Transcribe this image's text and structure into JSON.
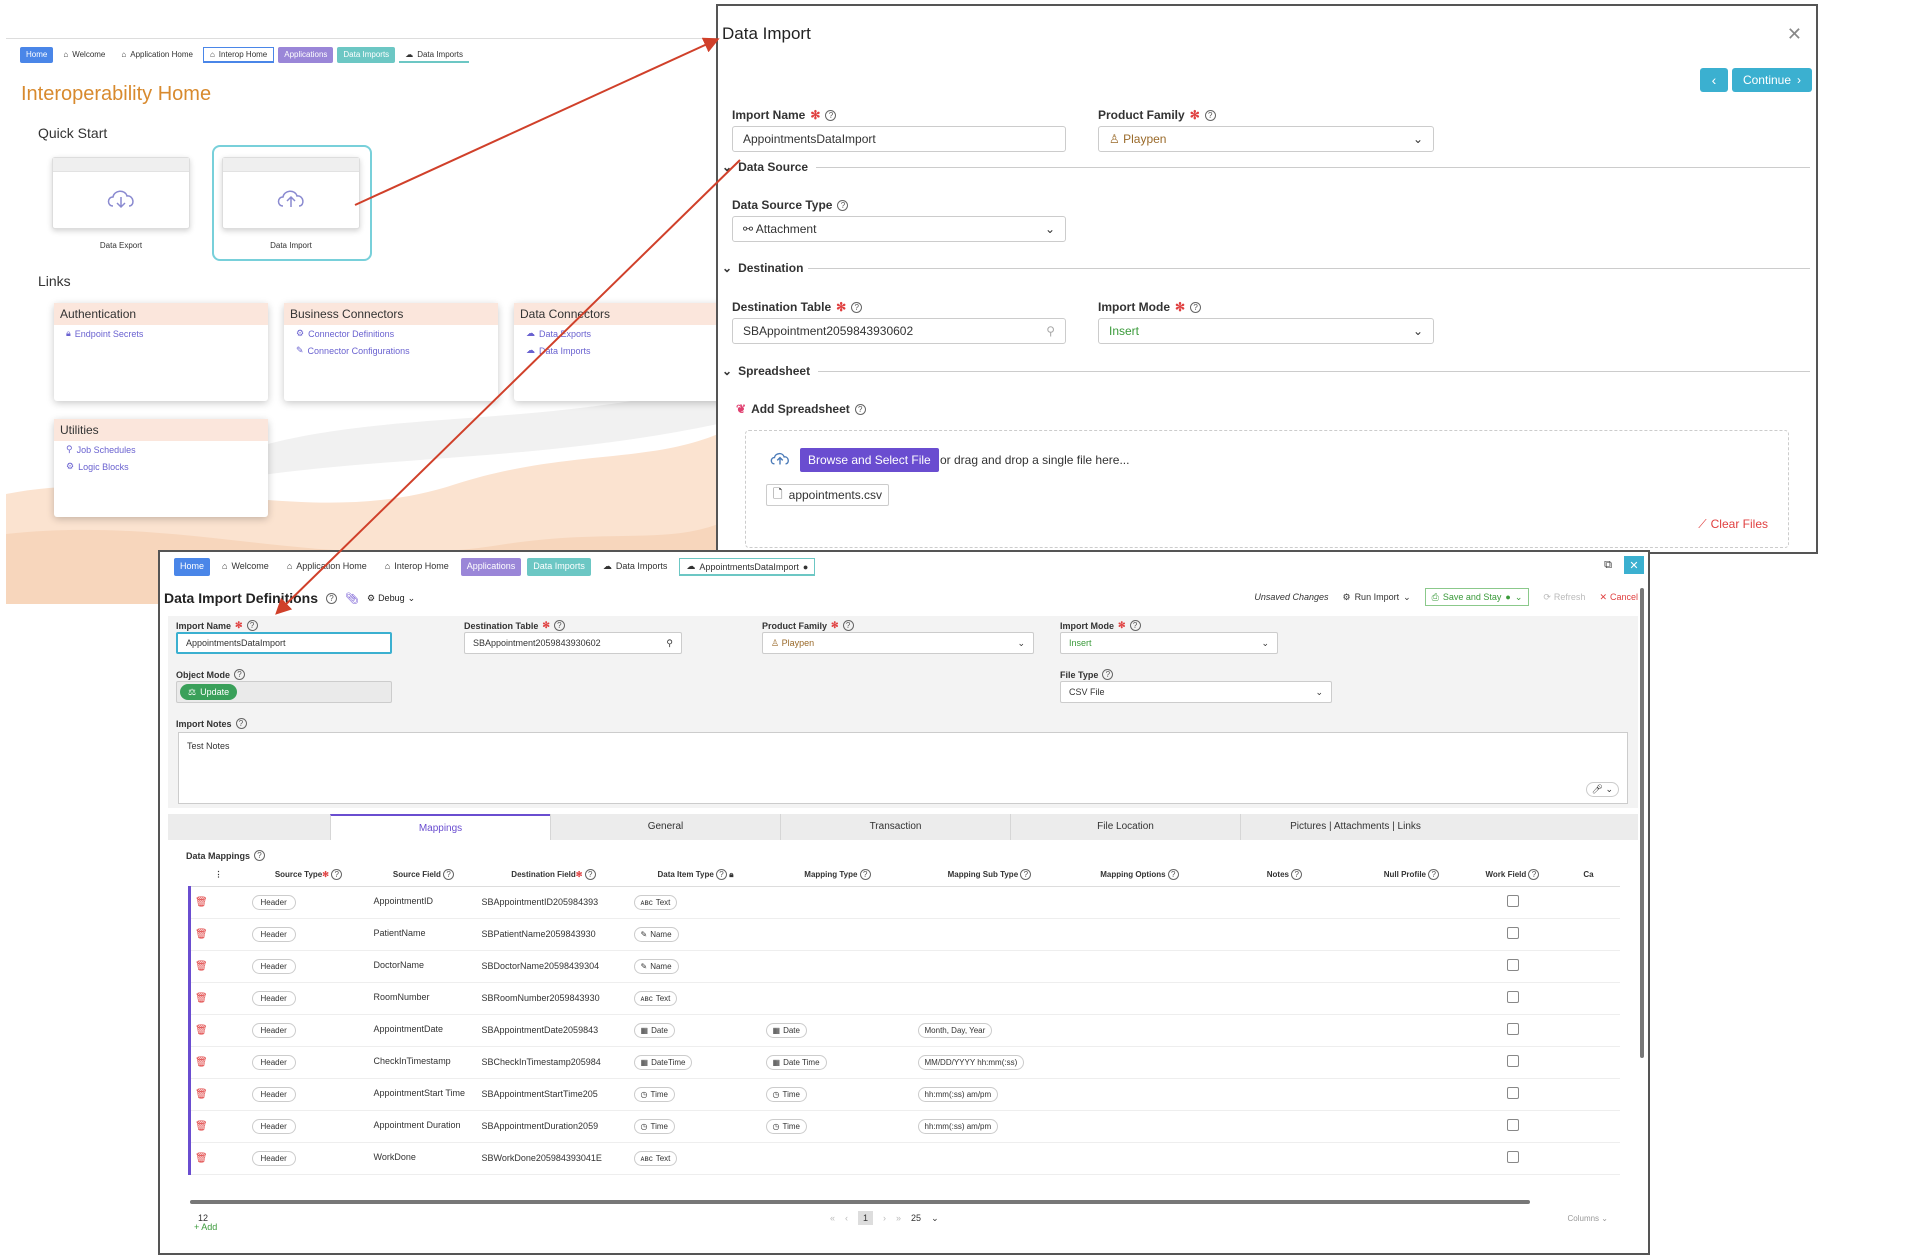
{
  "home": {
    "tabs": [
      "Home",
      "Welcome",
      "Application Home",
      "Interop Home",
      "Applications",
      "Data Imports",
      "Data Imports"
    ],
    "title": "Interoperability Home",
    "quick_start": "Quick Start",
    "cards": [
      "Data Export",
      "Data Import"
    ],
    "links": "Links",
    "link_cards": [
      {
        "title": "Authentication",
        "items": [
          "Endpoint Secrets"
        ]
      },
      {
        "title": "Business Connectors",
        "items": [
          "Connector Definitions",
          "Connector Configurations"
        ]
      },
      {
        "title": "Data Connectors",
        "items": [
          "Data Exports",
          "Data Imports"
        ]
      },
      {
        "title": "Utilities",
        "items": [
          "Job Schedules",
          "Logic Blocks"
        ]
      }
    ]
  },
  "modal": {
    "title": "Data Import",
    "continue": "Continue",
    "import_name_label": "Import Name",
    "import_name_value": "AppointmentsDataImport",
    "product_family_label": "Product Family",
    "product_family_value": "Playpen",
    "data_source": "Data Source",
    "data_source_type_label": "Data Source Type",
    "data_source_type_value": "Attachment",
    "destination": "Destination",
    "destination_table_label": "Destination Table",
    "destination_table_value": "SBAppointment2059843930602",
    "import_mode_label": "Import Mode",
    "import_mode_value": "Insert",
    "spreadsheet": "Spreadsheet",
    "add_spreadsheet": "Add Spreadsheet",
    "browse": "Browse and Select File",
    "drag": "or drag and drop a single file here...",
    "file": "appointments.csv",
    "clear": "Clear Files"
  },
  "defs": {
    "tabs": [
      "Home",
      "Welcome",
      "Application Home",
      "Interop Home",
      "Applications",
      "Data Imports",
      "Data Imports",
      "AppointmentsDataImport"
    ],
    "title": "Data Import Definitions",
    "debug": "Debug",
    "unsaved": "Unsaved Changes",
    "run_import": "Run Import",
    "save_stay": "Save and Stay",
    "refresh": "Refresh",
    "cancel": "Cancel",
    "import_name_label": "Import Name",
    "import_name_value": "AppointmentsDataImport",
    "destination_table_label": "Destination Table",
    "destination_table_value": "SBAppointment2059843930602",
    "product_family_label": "Product Family",
    "product_family_value": "Playpen",
    "import_mode_label": "Import Mode",
    "import_mode_value": "Insert",
    "object_mode_label": "Object Mode",
    "object_mode_value": "Update",
    "file_type_label": "File Type",
    "file_type_value": "CSV File",
    "notes_label": "Import Notes",
    "notes_value": "Test Notes",
    "subtabs": [
      "Mappings",
      "General",
      "Transaction",
      "File Location",
      "Pictures | Attachments | Links"
    ],
    "data_mappings": "Data Mappings",
    "columns": [
      "Source Type",
      "Source Field",
      "Destination Field",
      "Data Item Type",
      "Mapping Type",
      "Mapping Sub Type",
      "Mapping Options",
      "Notes",
      "Null Profile",
      "Work Field",
      "Ca"
    ],
    "rows": [
      {
        "src": "Header",
        "field": "AppointmentID",
        "dest": "SBAppointmentID205984393",
        "type": "Text",
        "type_icon": "abc-icon",
        "map": "",
        "sub": ""
      },
      {
        "src": "Header",
        "field": "PatientName",
        "dest": "SBPatientName2059843930",
        "type": "Name",
        "type_icon": "edit-icon",
        "map": "",
        "sub": ""
      },
      {
        "src": "Header",
        "field": "DoctorName",
        "dest": "SBDoctorName20598439304",
        "type": "Name",
        "type_icon": "edit-icon",
        "map": "",
        "sub": ""
      },
      {
        "src": "Header",
        "field": "RoomNumber",
        "dest": "SBRoomNumber2059843930",
        "type": "Text",
        "type_icon": "abc-icon",
        "map": "",
        "sub": ""
      },
      {
        "src": "Header",
        "field": "AppointmentDate",
        "dest": "SBAppointmentDate2059843",
        "type": "Date",
        "type_icon": "calendar-icon",
        "map": "Date",
        "sub": "Month, Day, Year"
      },
      {
        "src": "Header",
        "field": "CheckInTimestamp",
        "dest": "SBCheckInTimestamp205984",
        "type": "DateTime",
        "type_icon": "calendar-icon",
        "map": "Date Time",
        "sub": "MM/DD/YYYY hh:mm(:ss)"
      },
      {
        "src": "Header",
        "field": "AppointmentStart Time",
        "dest": "SBAppointmentStartTime205",
        "type": "Time",
        "type_icon": "clock-icon",
        "map": "Time",
        "sub": "hh:mm(:ss) am/pm"
      },
      {
        "src": "Header",
        "field": "Appointment Duration",
        "dest": "SBAppointmentDuration2059",
        "type": "Time",
        "type_icon": "clock-icon",
        "map": "Time",
        "sub": "hh:mm(:ss) am/pm"
      },
      {
        "src": "Header",
        "field": "WorkDone",
        "dest": "SBWorkDone205984393041E",
        "type": "Text",
        "type_icon": "abc-icon",
        "map": "",
        "sub": ""
      }
    ],
    "count": "12",
    "page": "1",
    "page_size": "25",
    "columns_btn": "Columns",
    "add": "Add"
  }
}
